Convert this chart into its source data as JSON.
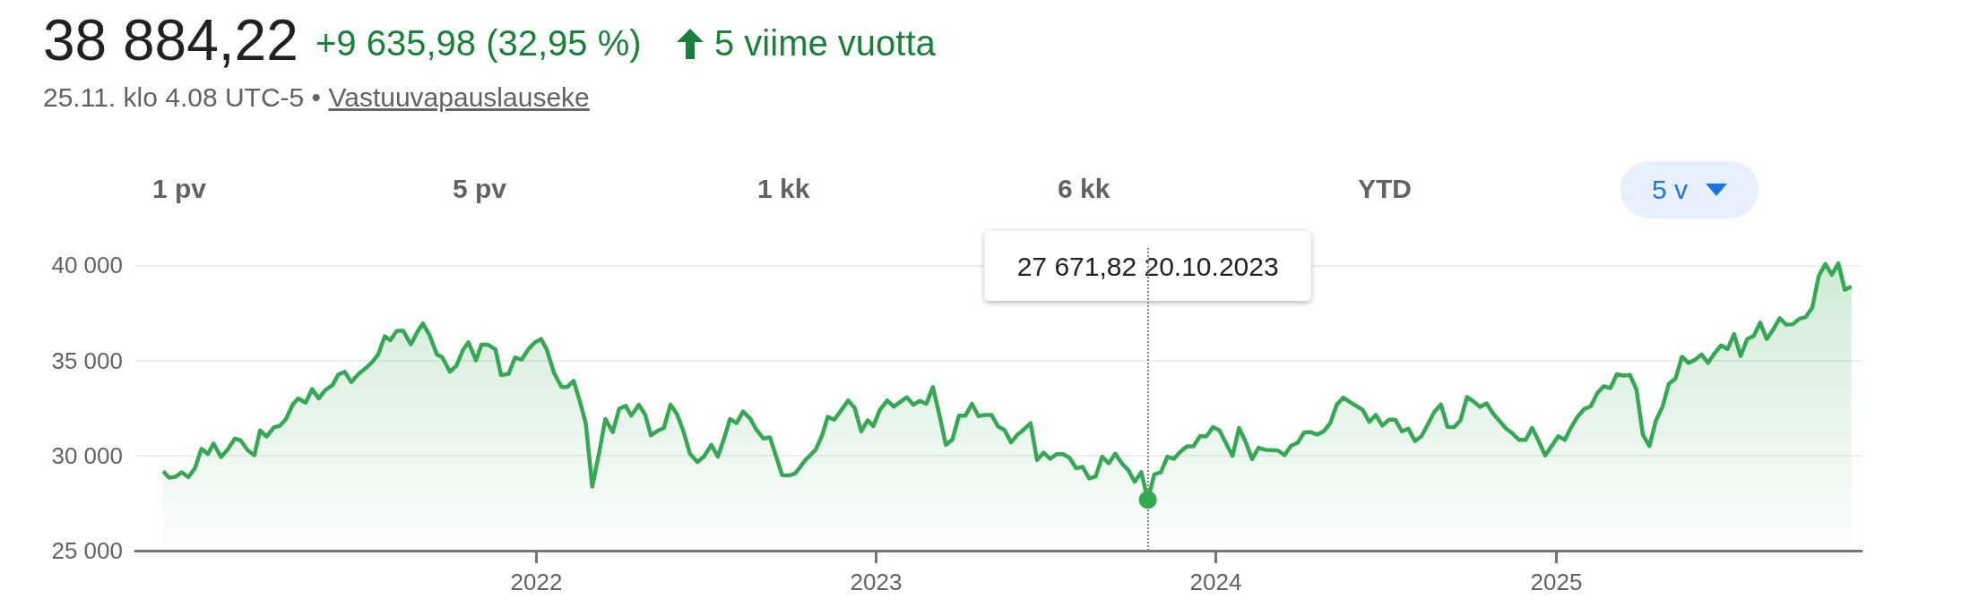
{
  "chart_data": {
    "type": "area",
    "title": "38 884,22",
    "subtitle": "+9 635,98 (32,95 %)",
    "color": "#34a853",
    "marker": "none",
    "grid": "y",
    "annotations": [
      "5 viime vuotta",
      "25.11. klo 4.08 UTC-5 •",
      "Vastuuvapauslauseke",
      "1 pv",
      "5 pv",
      "1 kk",
      "6 kk",
      "YTD",
      "5 v",
      "27 671,82 20.10.2023"
    ],
    "ref_lines": [
      {
        "axis": "x",
        "value": "2023-10-20",
        "color": "#80868b",
        "line_style": "dotted"
      }
    ],
    "xlim": [
      "2020-10-27",
      "2025-11-25"
    ],
    "xticks": [
      "2022",
      "2023",
      "2024",
      "2025"
    ],
    "ylim": [
      25000,
      41000
    ],
    "yticks": [
      {
        "value": 25000,
        "label": "25 000"
      },
      {
        "value": 30000,
        "label": "30 000"
      },
      {
        "value": 35000,
        "label": "35 000"
      },
      {
        "value": 40000,
        "label": "40 000"
      }
    ],
    "x": [
      "2020-11-26",
      "2020-12-02",
      "2020-12-09",
      "2020-12-16",
      "2020-12-23",
      "2020-12-30",
      "2021-01-06",
      "2021-01-13",
      "2021-01-19",
      "2021-01-27",
      "2021-02-03",
      "2021-02-11",
      "2021-02-17",
      "2021-02-25",
      "2021-03-04",
      "2021-03-10",
      "2021-03-17",
      "2021-03-25",
      "2021-03-31",
      "2021-04-07",
      "2021-04-14",
      "2021-04-20",
      "2021-04-28",
      "2021-05-05",
      "2021-05-12",
      "2021-05-19",
      "2021-05-27",
      "2021-06-02",
      "2021-06-09",
      "2021-06-16",
      "2021-06-24",
      "2021-07-02",
      "2021-07-09",
      "2021-07-15",
      "2021-07-22",
      "2021-07-28",
      "2021-08-04",
      "2021-08-11",
      "2021-08-19",
      "2021-08-26",
      "2021-09-01",
      "2021-09-08",
      "2021-09-16",
      "2021-09-22",
      "2021-09-30",
      "2021-10-07",
      "2021-10-14",
      "2021-10-20",
      "2021-10-28",
      "2021-11-03",
      "2021-11-10",
      "2021-11-18",
      "2021-11-24",
      "2021-12-02",
      "2021-12-09",
      "2021-12-16",
      "2021-12-24",
      "2021-12-31",
      "2022-01-06",
      "2022-01-12",
      "2022-01-20",
      "2022-01-28",
      "2022-02-03",
      "2022-02-10",
      "2022-02-17",
      "2022-02-23",
      "2022-03-02",
      "2022-03-10",
      "2022-03-16",
      "2022-03-24",
      "2022-03-31",
      "2022-04-07",
      "2022-04-13",
      "2022-04-21",
      "2022-04-28",
      "2022-05-04",
      "2022-05-12",
      "2022-05-18",
      "2022-05-25",
      "2022-06-01",
      "2022-06-08",
      "2022-06-15",
      "2022-06-23",
      "2022-06-30",
      "2022-07-08",
      "2022-07-15",
      "2022-07-22",
      "2022-07-28",
      "2022-08-04",
      "2022-08-11",
      "2022-08-19",
      "2022-08-25",
      "2022-09-02",
      "2022-09-09",
      "2022-09-22",
      "2022-09-29",
      "2022-10-06",
      "2022-10-17",
      "2022-10-28",
      "2022-11-04",
      "2022-11-10",
      "2022-11-17",
      "2022-11-24",
      "2022-12-02",
      "2022-12-09",
      "2022-12-16",
      "2022-12-23",
      "2022-12-29",
      "2023-01-05",
      "2023-01-13",
      "2023-01-20",
      "2023-01-27",
      "2023-02-03",
      "2023-02-10",
      "2023-02-17",
      "2023-02-24",
      "2023-03-03",
      "2023-03-10",
      "2023-03-17",
      "2023-03-24",
      "2023-03-31",
      "2023-04-07",
      "2023-04-14",
      "2023-04-21",
      "2023-04-28",
      "2023-05-05",
      "2023-05-12",
      "2023-05-19",
      "2023-05-26",
      "2023-06-02",
      "2023-06-09",
      "2023-06-16",
      "2023-06-23",
      "2023-06-30",
      "2023-07-07",
      "2023-07-14",
      "2023-07-21",
      "2023-07-28",
      "2023-08-04",
      "2023-08-11",
      "2023-08-18",
      "2023-08-25",
      "2023-09-01",
      "2023-09-08",
      "2023-09-15",
      "2023-09-22",
      "2023-09-29",
      "2023-10-06",
      "2023-10-13",
      "2023-10-20",
      "2023-10-27",
      "2023-11-03",
      "2023-11-10",
      "2023-11-17",
      "2023-11-24",
      "2023-12-01",
      "2023-12-08",
      "2023-12-15",
      "2023-12-22",
      "2023-12-29",
      "2024-01-05",
      "2024-01-19",
      "2024-01-26",
      "2024-02-02",
      "2024-02-09",
      "2024-02-16",
      "2024-02-23",
      "2024-03-08",
      "2024-03-15",
      "2024-03-22",
      "2024-03-29",
      "2024-04-05",
      "2024-04-12",
      "2024-04-19",
      "2024-04-26",
      "2024-05-03",
      "2024-05-10",
      "2024-05-17",
      "2024-05-24",
      "2024-06-07",
      "2024-06-14",
      "2024-06-21",
      "2024-06-28",
      "2024-07-05",
      "2024-07-12",
      "2024-07-19",
      "2024-07-26",
      "2024-08-02",
      "2024-08-09",
      "2024-08-16",
      "2024-08-23",
      "2024-08-30",
      "2024-09-06",
      "2024-09-13",
      "2024-09-20",
      "2024-09-27",
      "2024-10-04",
      "2024-10-11",
      "2024-10-18",
      "2024-10-25",
      "2024-11-08",
      "2024-11-15",
      "2024-11-22",
      "2024-11-29",
      "2024-12-06",
      "2024-12-13",
      "2024-12-20",
      "2024-12-27",
      "2025-01-03",
      "2025-01-10",
      "2025-01-17",
      "2025-01-24",
      "2025-01-31",
      "2025-02-07",
      "2025-02-14",
      "2025-02-21",
      "2025-02-28",
      "2025-03-07",
      "2025-03-14",
      "2025-03-21",
      "2025-03-28",
      "2025-04-04",
      "2025-04-11",
      "2025-04-18",
      "2025-04-25",
      "2025-05-02",
      "2025-05-09",
      "2025-05-16",
      "2025-05-23",
      "2025-05-30",
      "2025-06-06",
      "2025-06-13",
      "2025-06-20",
      "2025-06-27",
      "2025-07-04",
      "2025-07-11",
      "2025-07-18",
      "2025-07-25",
      "2025-08-01",
      "2025-08-08",
      "2025-08-15",
      "2025-08-22",
      "2025-08-29",
      "2025-09-05",
      "2025-09-12",
      "2025-09-19",
      "2025-09-26",
      "2025-10-03",
      "2025-10-10",
      "2025-10-17",
      "2025-10-24",
      "2025-10-31",
      "2025-11-07",
      "2025-11-14"
    ],
    "values": [
      29180,
      28840,
      28880,
      29120,
      28860,
      29330,
      30350,
      30090,
      30630,
      29920,
      30300,
      30890,
      30800,
      30260,
      30020,
      31320,
      30990,
      31490,
      31550,
      31920,
      32670,
      33000,
      32780,
      33490,
      33000,
      33430,
      33710,
      34250,
      34400,
      33860,
      34290,
      34610,
      34940,
      35320,
      36270,
      36060,
      36550,
      36550,
      35840,
      36490,
      36940,
      36340,
      35320,
      35150,
      34400,
      34720,
      35540,
      35950,
      35000,
      35840,
      35820,
      35580,
      34220,
      34290,
      35150,
      35040,
      35630,
      35970,
      36120,
      35580,
      34330,
      33600,
      33600,
      33920,
      32780,
      31700,
      28360,
      30300,
      31920,
      31230,
      32460,
      32610,
      32090,
      32670,
      32130,
      31060,
      31320,
      31450,
      32670,
      32180,
      31270,
      30090,
      29660,
      29940,
      30560,
      29940,
      30950,
      31920,
      31700,
      32310,
      31920,
      31380,
      30890,
      30950,
      28970,
      28950,
      29050,
      29760,
      30300,
      31060,
      32030,
      31880,
      32350,
      32890,
      32500,
      31270,
      31850,
      31550,
      32390,
      32890,
      32570,
      32820,
      33060,
      32670,
      32870,
      32720,
      33600,
      32130,
      30560,
      30840,
      32090,
      32090,
      32720,
      32070,
      32130,
      32130,
      31530,
      31340,
      30690,
      31100,
      31380,
      31700,
      29760,
      30150,
      29830,
      30070,
      30070,
      29870,
      29330,
      29400,
      28790,
      28900,
      29940,
      29590,
      30090,
      29590,
      29230,
      28620,
      29120,
      27671.82,
      29010,
      29120,
      29940,
      29830,
      30200,
      30480,
      30480,
      31010,
      31010,
      31490,
      31320,
      29980,
      31450,
      30730,
      29810,
      30410,
      30300,
      30260,
      30020,
      30520,
      30670,
      31210,
      31230,
      31100,
      31270,
      31700,
      32670,
      33040,
      32820,
      32390,
      31770,
      32130,
      31570,
      31880,
      31880,
      31270,
      31410,
      30760,
      31010,
      31650,
      32310,
      32680,
      31510,
      31490,
      31850,
      33080,
      32840,
      32550,
      32740,
      32210,
      31410,
      31150,
      30820,
      30820,
      31450,
      30760,
      30000,
      30500,
      31010,
      30820,
      31490,
      32050,
      32450,
      32590,
      33280,
      33640,
      33540,
      34270,
      34200,
      34240,
      33480,
      31090,
      30500,
      31850,
      32550,
      33780,
      34040,
      35190,
      34870,
      35030,
      35310,
      34870,
      35370,
      35790,
      35590,
      36380,
      35230,
      36120,
      36280,
      36980,
      36120,
      36620,
      37220,
      36880,
      36900,
      37180,
      37280,
      37770,
      39440,
      40060,
      39500,
      40100,
      38710,
      38884.22
    ]
  }
}
